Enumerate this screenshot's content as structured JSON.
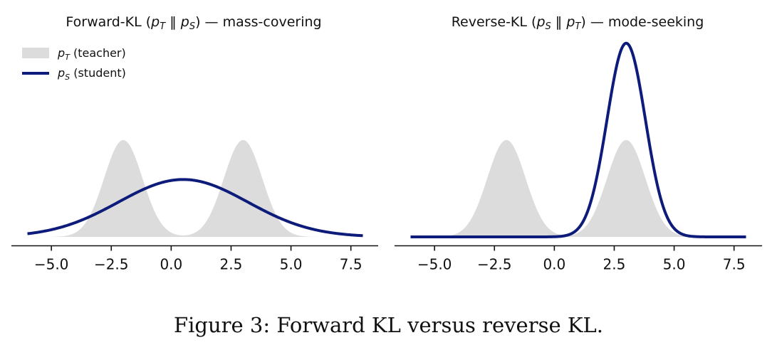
{
  "caption": "Figure 3: Forward KL versus reverse KL.",
  "colors": {
    "teacher_fill": "#dcdcdc",
    "student_line": "#0d1b7a",
    "axis": "#111111"
  },
  "chart_data": [
    {
      "type": "area",
      "title": "Forward-KL (pT ‖ pS) — mass-covering",
      "title_parts": {
        "prefix": "Forward-KL (",
        "p1": "p",
        "s1": "T",
        "sep": " ‖ ",
        "p2": "p",
        "s2": "S",
        "suffix": ") — mass-covering"
      },
      "xlim": [
        -6,
        8
      ],
      "ylim": [
        0,
        0.5
      ],
      "xticks": [
        -5.0,
        -2.5,
        0.0,
        2.5,
        5.0,
        7.5
      ],
      "xtick_labels": [
        "−5.0",
        "−2.5",
        "0.0",
        "2.5",
        "5.0",
        "7.5"
      ],
      "grid": false,
      "legend": "top-left",
      "legend_entries": [
        {
          "p": "p",
          "sub": "T",
          "text": " (teacher)"
        },
        {
          "p": "p",
          "sub": "S",
          "text": " (student)"
        }
      ],
      "teacher": {
        "name": "pT (teacher)",
        "components": [
          {
            "weight": 0.5,
            "mu": -2,
            "sigma": 0.8
          },
          {
            "weight": 0.5,
            "mu": 3,
            "sigma": 0.8
          }
        ]
      },
      "student": {
        "name": "pS (student)",
        "components": [
          {
            "weight": 1.0,
            "mu": 0.5,
            "sigma": 2.7
          }
        ]
      }
    },
    {
      "type": "area",
      "title": "Reverse-KL (pS ‖ pT) — mode-seeking",
      "title_parts": {
        "prefix": "Reverse-KL (",
        "p1": "p",
        "s1": "S",
        "sep": " ‖ ",
        "p2": "p",
        "s2": "T",
        "suffix": ") — mode-seeking"
      },
      "xlim": [
        -6,
        8
      ],
      "ylim": [
        0,
        0.5
      ],
      "xticks": [
        -5.0,
        -2.5,
        0.0,
        2.5,
        5.0,
        7.5
      ],
      "xtick_labels": [
        "−5.0",
        "−2.5",
        "0.0",
        "2.5",
        "5.0",
        "7.5"
      ],
      "grid": false,
      "legend": "none",
      "teacher": {
        "name": "pT (teacher)",
        "components": [
          {
            "weight": 0.5,
            "mu": -2,
            "sigma": 0.8
          },
          {
            "weight": 0.5,
            "mu": 3,
            "sigma": 0.8
          }
        ]
      },
      "student": {
        "name": "pS (student)",
        "components": [
          {
            "weight": 1.0,
            "mu": 3,
            "sigma": 0.8
          }
        ]
      }
    }
  ]
}
